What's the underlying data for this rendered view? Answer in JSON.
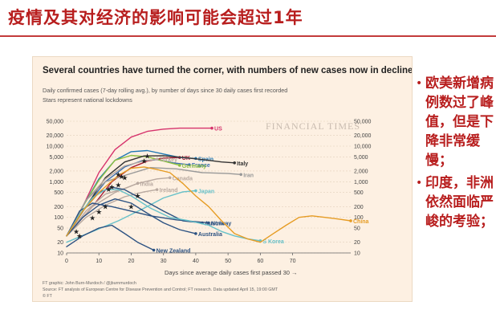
{
  "slide": {
    "title": "疫情及其对经济的影响可能会超过1年",
    "colors": {
      "accent": "#b81e1e",
      "panel_bg": "#fdf0e2"
    }
  },
  "bullets": [
    "欧美新增病例数过了峰值，但是下降非常缓慢；",
    "印度，非洲依然面临严峻的考验；"
  ],
  "chart_data": {
    "type": "line",
    "title": "Several countries have turned the corner, with numbers of new cases now in decline",
    "subtitle": "Daily confirmed cases (7-day rolling avg.), by number of days since 30 daily cases first recorded",
    "note": "Stars represent national lockdowns",
    "watermark": "FINANCIAL TIMES",
    "xlabel": "Days since average daily cases first passed 30 →",
    "x_ticks": [
      0,
      10,
      20,
      30,
      40,
      50,
      60,
      70
    ],
    "xlim": [
      0,
      88
    ],
    "y_scale": "log",
    "ylim": [
      10,
      50000
    ],
    "y_ticks": [
      10,
      20,
      50,
      100,
      200,
      500,
      1000,
      2000,
      5000,
      10000,
      20000,
      50000
    ],
    "y_tick_labels": [
      "10",
      "20",
      "50",
      "100",
      "200",
      "500",
      "1,000",
      "2,000",
      "5,000",
      "10,000",
      "20,000",
      "50,000"
    ],
    "series": [
      {
        "name": "US",
        "color": "#d6336c",
        "points": [
          [
            0,
            30
          ],
          [
            5,
            200
          ],
          [
            10,
            1800
          ],
          [
            15,
            8000
          ],
          [
            20,
            18000
          ],
          [
            25,
            26000
          ],
          [
            30,
            30000
          ],
          [
            35,
            32000
          ],
          [
            40,
            32000
          ],
          [
            45,
            32000
          ]
        ]
      },
      {
        "name": "UK",
        "color": "#a61a35",
        "points": [
          [
            0,
            30
          ],
          [
            8,
            200
          ],
          [
            14,
            1000
          ],
          [
            20,
            2500
          ],
          [
            25,
            3800
          ],
          [
            30,
            4600
          ],
          [
            35,
            4800
          ]
        ]
      },
      {
        "name": "Spain",
        "color": "#1f78b4",
        "points": [
          [
            0,
            30
          ],
          [
            5,
            200
          ],
          [
            10,
            1200
          ],
          [
            15,
            4000
          ],
          [
            20,
            7000
          ],
          [
            25,
            7500
          ],
          [
            30,
            6000
          ],
          [
            35,
            4800
          ],
          [
            40,
            4500
          ]
        ]
      },
      {
        "name": "France",
        "color": "#3a6fb0",
        "points": [
          [
            0,
            30
          ],
          [
            6,
            200
          ],
          [
            12,
            1000
          ],
          [
            18,
            2600
          ],
          [
            23,
            3800
          ],
          [
            28,
            4200
          ],
          [
            33,
            3400
          ],
          [
            38,
            3000
          ]
        ]
      },
      {
        "name": "Germany",
        "color": "#8bbf3f",
        "points": [
          [
            0,
            30
          ],
          [
            5,
            200
          ],
          [
            10,
            1100
          ],
          [
            15,
            4000
          ],
          [
            20,
            5500
          ],
          [
            25,
            5000
          ],
          [
            30,
            3800
          ],
          [
            35,
            2900
          ]
        ]
      },
      {
        "name": "Italy",
        "color": "#333333",
        "points": [
          [
            0,
            30
          ],
          [
            6,
            200
          ],
          [
            12,
            1300
          ],
          [
            18,
            3600
          ],
          [
            24,
            5300
          ],
          [
            30,
            5400
          ],
          [
            36,
            4800
          ],
          [
            42,
            4200
          ],
          [
            48,
            3600
          ],
          [
            52,
            3400
          ]
        ]
      },
      {
        "name": "Turkey",
        "color": "#b8a9a0",
        "points": [
          [
            0,
            30
          ],
          [
            6,
            300
          ],
          [
            12,
            1200
          ],
          [
            18,
            2800
          ],
          [
            24,
            3800
          ],
          [
            28,
            4300
          ]
        ]
      },
      {
        "name": "Iran",
        "color": "#999999",
        "points": [
          [
            0,
            30
          ],
          [
            6,
            300
          ],
          [
            12,
            1000
          ],
          [
            18,
            1500
          ],
          [
            26,
            2500
          ],
          [
            34,
            2300
          ],
          [
            42,
            1800
          ],
          [
            50,
            1700
          ],
          [
            54,
            1600
          ]
        ]
      },
      {
        "name": "Canada",
        "color": "#b8a9a0",
        "points": [
          [
            0,
            30
          ],
          [
            8,
            200
          ],
          [
            15,
            500
          ],
          [
            22,
            900
          ],
          [
            28,
            1200
          ],
          [
            32,
            1300
          ]
        ]
      },
      {
        "name": "India",
        "color": "#b8a9a0",
        "points": [
          [
            0,
            30
          ],
          [
            6,
            150
          ],
          [
            12,
            450
          ],
          [
            18,
            650
          ],
          [
            22,
            900
          ]
        ]
      },
      {
        "name": "Ireland",
        "color": "#b8a9a0",
        "points": [
          [
            0,
            30
          ],
          [
            6,
            100
          ],
          [
            12,
            220
          ],
          [
            18,
            380
          ],
          [
            24,
            520
          ],
          [
            28,
            600
          ]
        ]
      },
      {
        "name": "Japan",
        "color": "#67c1c9",
        "points": [
          [
            0,
            20
          ],
          [
            8,
            40
          ],
          [
            16,
            80
          ],
          [
            24,
            180
          ],
          [
            30,
            350
          ],
          [
            36,
            520
          ],
          [
            40,
            560
          ]
        ]
      },
      {
        "name": "Austria",
        "color": "#2c5282",
        "points": [
          [
            0,
            30
          ],
          [
            5,
            150
          ],
          [
            10,
            500
          ],
          [
            14,
            700
          ],
          [
            18,
            600
          ],
          [
            24,
            300
          ],
          [
            30,
            150
          ],
          [
            36,
            80
          ],
          [
            42,
            70
          ]
        ]
      },
      {
        "name": "Norway",
        "color": "#2c5282",
        "points": [
          [
            0,
            30
          ],
          [
            4,
            150
          ],
          [
            8,
            250
          ],
          [
            14,
            200
          ],
          [
            20,
            150
          ],
          [
            26,
            110
          ],
          [
            34,
            85
          ],
          [
            44,
            70
          ]
        ]
      },
      {
        "name": "Australia",
        "color": "#2c5282",
        "points": [
          [
            0,
            30
          ],
          [
            5,
            100
          ],
          [
            10,
            220
          ],
          [
            15,
            330
          ],
          [
            20,
            250
          ],
          [
            25,
            130
          ],
          [
            30,
            70
          ],
          [
            35,
            45
          ],
          [
            40,
            35
          ]
        ]
      },
      {
        "name": "New Zealand",
        "color": "#2c5282",
        "points": [
          [
            0,
            15
          ],
          [
            5,
            30
          ],
          [
            10,
            50
          ],
          [
            14,
            60
          ],
          [
            18,
            35
          ],
          [
            22,
            20
          ],
          [
            27,
            12
          ]
        ]
      },
      {
        "name": "S Korea",
        "color": "#67c1c9",
        "points": [
          [
            0,
            30
          ],
          [
            4,
            120
          ],
          [
            8,
            350
          ],
          [
            12,
            600
          ],
          [
            16,
            600
          ],
          [
            20,
            400
          ],
          [
            26,
            180
          ],
          [
            32,
            100
          ],
          [
            38,
            80
          ],
          [
            44,
            60
          ],
          [
            48,
            40
          ],
          [
            52,
            30
          ],
          [
            56,
            25
          ],
          [
            60,
            22
          ]
        ]
      },
      {
        "name": "China",
        "color": "#e69c24",
        "points": [
          [
            0,
            30
          ],
          [
            5,
            150
          ],
          [
            10,
            500
          ],
          [
            16,
            1500
          ],
          [
            20,
            2400
          ],
          [
            24,
            2600
          ],
          [
            28,
            2200
          ],
          [
            32,
            1800
          ],
          [
            36,
            900
          ],
          [
            40,
            400
          ],
          [
            44,
            200
          ],
          [
            48,
            80
          ],
          [
            52,
            35
          ],
          [
            56,
            25
          ],
          [
            60,
            20
          ],
          [
            64,
            35
          ],
          [
            68,
            60
          ],
          [
            72,
            100
          ],
          [
            76,
            110
          ],
          [
            80,
            100
          ],
          [
            84,
            90
          ],
          [
            88,
            80
          ]
        ]
      }
    ],
    "labeled_series": [
      "US",
      "UK",
      "Spain",
      "France",
      "Germany",
      "Italy",
      "Turkey",
      "Iran",
      "Canada",
      "India",
      "Ireland",
      "Japan",
      "Austria",
      "Norway",
      "Australia",
      "New Zealand",
      "S Korea",
      "China"
    ],
    "lockdowns": [
      [
        3,
        40
      ],
      [
        4,
        30
      ],
      [
        8,
        95
      ],
      [
        10,
        140
      ],
      [
        12,
        200
      ],
      [
        13,
        600
      ],
      [
        14,
        700
      ],
      [
        16,
        800
      ],
      [
        16,
        1600
      ],
      [
        17,
        1400
      ],
      [
        18,
        1300
      ],
      [
        20,
        200
      ],
      [
        22,
        400
      ],
      [
        24,
        3800
      ],
      [
        25,
        5200
      ]
    ],
    "credits": [
      "FT graphic: John Burn-Murdoch / @jburnmurdoch",
      "Source: FT analysis of European Centre for Disease Prevention and Control; FT research. Data updated April 15, 19:00 GMT",
      "© FT"
    ]
  }
}
